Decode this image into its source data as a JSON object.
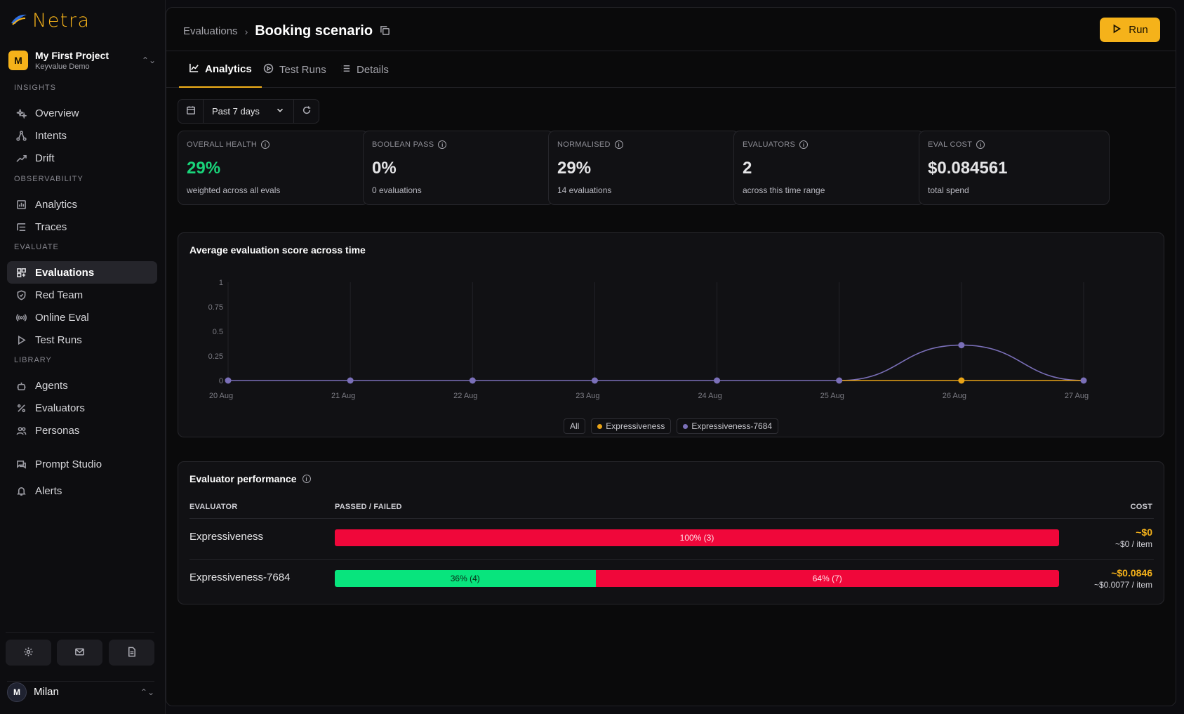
{
  "app": {
    "name": "Netra"
  },
  "project": {
    "initial": "M",
    "name": "My First Project",
    "org": "Keyvalue Demo"
  },
  "sidebar": {
    "sections": [
      {
        "label": "INSIGHTS",
        "items": [
          "Overview",
          "Intents",
          "Drift"
        ]
      },
      {
        "label": "OBSERVABILITY",
        "items": [
          "Analytics",
          "Traces"
        ]
      },
      {
        "label": "EVALUATE",
        "items": [
          "Evaluations",
          "Red Team",
          "Online Eval",
          "Test Runs"
        ]
      },
      {
        "label": "LIBRARY",
        "items": [
          "Agents",
          "Evaluators",
          "Personas"
        ]
      }
    ],
    "extra": [
      "Prompt Studio",
      "Alerts"
    ],
    "active": "Evaluations"
  },
  "user": {
    "initial": "M",
    "name": "Milan"
  },
  "breadcrumb": {
    "parent": "Evaluations",
    "title": "Booking scenario"
  },
  "run_button": "Run",
  "tabs": [
    "Analytics",
    "Test Runs",
    "Details"
  ],
  "filter": {
    "range": "Past 7 days"
  },
  "kpis": [
    {
      "label": "OVERALL HEALTH",
      "value": "29%",
      "sub": "weighted across all evals"
    },
    {
      "label": "BOOLEAN PASS",
      "value": "0%",
      "sub": "0 evaluations"
    },
    {
      "label": "NORMALISED",
      "value": "29%",
      "sub": "14 evaluations"
    },
    {
      "label": "EVALUATORS",
      "value": "2",
      "sub": "across this time range"
    },
    {
      "label": "EVAL COST",
      "value": "$0.084561",
      "sub": "total spend"
    }
  ],
  "colors": {
    "accent": "#f5b21a",
    "pass": "#08e47d",
    "fail": "#f0073a",
    "series_a": "#e8a317",
    "series_b": "#7a6fb8",
    "health": "#19d47a"
  },
  "chart_data": {
    "type": "line",
    "title": "Average evaluation score across time",
    "x": [
      "20 Aug",
      "21 Aug",
      "22 Aug",
      "23 Aug",
      "24 Aug",
      "25 Aug",
      "26 Aug",
      "27 Aug"
    ],
    "yticks": [
      "0",
      "0.25",
      "0.5",
      "0.75",
      "1"
    ],
    "ylim": [
      0,
      1
    ],
    "series": [
      {
        "name": "Expressiveness",
        "color": "#e8a317",
        "values": [
          null,
          null,
          null,
          null,
          null,
          0,
          0,
          0
        ]
      },
      {
        "name": "Expressiveness-7684",
        "color": "#7a6fb8",
        "values": [
          0,
          0,
          0,
          0,
          0,
          0,
          0.36,
          0
        ]
      }
    ],
    "legend": [
      "All",
      "Expressiveness",
      "Expressiveness-7684"
    ],
    "grid": true
  },
  "performance": {
    "title": "Evaluator performance",
    "headers": {
      "evaluator": "EVALUATOR",
      "passfail": "PASSED / FAILED",
      "cost": "COST"
    },
    "rows": [
      {
        "name": "Expressiveness",
        "pass_pct": 0,
        "pass_label": "",
        "fail_label": "100% (3)",
        "cost": "~$0",
        "per_item": "~$0 / item"
      },
      {
        "name": "Expressiveness-7684",
        "pass_pct": 36,
        "pass_label": "36% (4)",
        "fail_label": "64% (7)",
        "cost": "~$0.0846",
        "per_item": "~$0.0077 / item"
      }
    ]
  }
}
